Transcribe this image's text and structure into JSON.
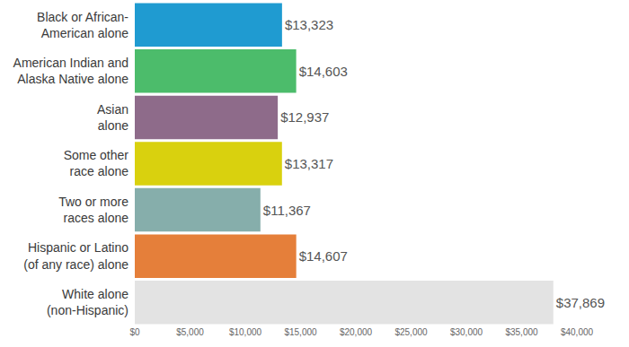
{
  "chart_data": {
    "type": "bar",
    "orientation": "horizontal",
    "categories": [
      "Black or African-\nAmerican alone",
      "American Indian and\nAlaska Native alone",
      "Asian\nalone",
      "Some other\nrace alone",
      "Two or more\nraces alone",
      "Hispanic or Latino\n(of any race) alone",
      "White alone\n(non-Hispanic)"
    ],
    "values": [
      13323,
      14603,
      12937,
      13317,
      11367,
      14607,
      37869
    ],
    "value_labels": [
      "$13,323",
      "$14,603",
      "$12,937",
      "$13,317",
      "$11,367",
      "$14,607",
      "$37,869"
    ],
    "colors": [
      "#1f9bd1",
      "#4cbc6b",
      "#8e6b8a",
      "#d9d10e",
      "#86aeab",
      "#e57f3a",
      "#e3e3e3"
    ],
    "data_labels": true,
    "grid": false,
    "xlim": [
      0,
      40000
    ],
    "xticks": [
      {
        "value": 0,
        "label": "$0"
      },
      {
        "value": 5000,
        "label": "$5,000"
      },
      {
        "value": 10000,
        "label": "$10,000"
      },
      {
        "value": 15000,
        "label": "$15,000"
      },
      {
        "value": 20000,
        "label": "$20,000"
      },
      {
        "value": 25000,
        "label": "$25,000"
      },
      {
        "value": 30000,
        "label": "$30,000"
      },
      {
        "value": 35000,
        "label": "$35,000"
      },
      {
        "value": 40000,
        "label": "$40,000"
      }
    ]
  }
}
